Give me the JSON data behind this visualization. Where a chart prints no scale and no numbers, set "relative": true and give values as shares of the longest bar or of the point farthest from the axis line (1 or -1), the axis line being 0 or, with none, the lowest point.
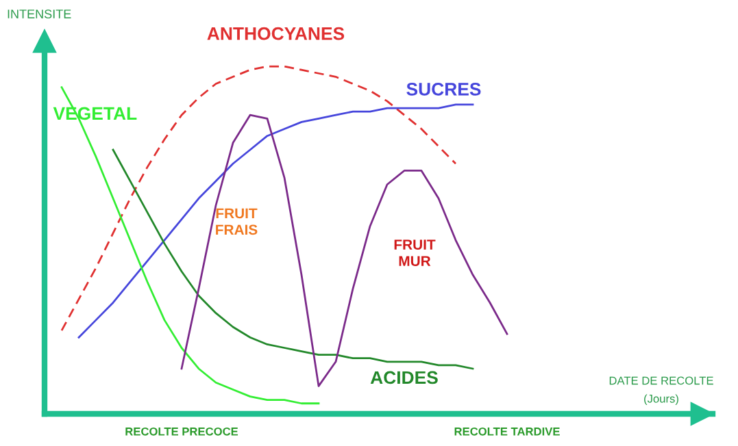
{
  "chart_data": {
    "type": "line",
    "relative": true,
    "ylabel": "INTENSITE",
    "xlabel": "DATE DE RECOLTE\n(Jours)",
    "categories": [
      null,
      null,
      null,
      null,
      null,
      null,
      null,
      "RECOLTE PRECOCE",
      null,
      null,
      null,
      null,
      null,
      null,
      null,
      null,
      null,
      null,
      null,
      null,
      null,
      null,
      null,
      null,
      null,
      null,
      "RECOLTE TARDIVE",
      null,
      null,
      null,
      null,
      null,
      null,
      null,
      null,
      null,
      null,
      null,
      null
    ],
    "annotations": [
      "FRUIT\nFRAIS",
      "FRUIT\nMUR"
    ],
    "series": [
      {
        "name": "ANTHOCYANES",
        "color": "#e03030",
        "line_style": "dashed",
        "values": [
          0.24,
          0.33,
          0.42,
          0.52,
          0.62,
          0.71,
          0.79,
          0.86,
          0.91,
          0.95,
          0.97,
          0.99,
          1.0,
          1.0,
          0.99,
          0.98,
          0.97,
          0.95,
          0.93,
          0.9,
          0.86,
          0.82,
          0.77,
          0.72,
          null,
          null,
          null,
          null,
          null,
          null,
          null,
          null,
          null,
          null,
          null,
          null,
          null,
          null,
          null
        ]
      },
      {
        "name": "SUCRES",
        "color": "#4646dc",
        "values": [
          null,
          0.22,
          0.27,
          0.32,
          0.38,
          0.44,
          0.5,
          0.56,
          0.62,
          0.67,
          0.72,
          0.76,
          0.8,
          0.82,
          0.84,
          0.85,
          0.86,
          0.87,
          0.87,
          0.88,
          0.88,
          0.88,
          0.88,
          0.89,
          0.89,
          null,
          null,
          null,
          null,
          null,
          null,
          null,
          null,
          null,
          null,
          null,
          null,
          null,
          null
        ]
      },
      {
        "name": "VEGETAL",
        "color": "#33ee33",
        "values": [
          0.94,
          0.85,
          0.74,
          0.62,
          0.5,
          0.38,
          0.27,
          0.19,
          0.13,
          0.09,
          0.07,
          0.05,
          0.04,
          0.04,
          0.03,
          0.03,
          null,
          null,
          null,
          null,
          null,
          null,
          null,
          null,
          null,
          null,
          null,
          null,
          null,
          null,
          null,
          null,
          null,
          null,
          null,
          null,
          null,
          null,
          null
        ]
      },
      {
        "name": "ACIDES",
        "color": "#22882a",
        "values": [
          null,
          null,
          null,
          0.76,
          0.67,
          0.58,
          0.49,
          0.41,
          0.34,
          0.29,
          0.25,
          0.22,
          0.2,
          0.19,
          0.18,
          0.17,
          0.17,
          0.16,
          0.16,
          0.15,
          0.15,
          0.15,
          0.14,
          0.14,
          0.13,
          null,
          null,
          null,
          null,
          null,
          null,
          null,
          null,
          null,
          null,
          null,
          null,
          null,
          null
        ]
      },
      {
        "color": "#7b2a8a",
        "values": [
          null,
          null,
          null,
          null,
          null,
          null,
          null,
          0.13,
          0.36,
          0.6,
          0.78,
          0.86,
          0.85,
          0.68,
          0.4,
          0.08,
          0.15,
          0.36,
          0.54,
          0.66,
          0.7,
          0.7,
          0.62,
          0.5,
          0.4,
          0.32,
          0.23,
          null,
          null,
          null,
          null,
          null,
          null,
          null,
          null,
          null,
          null,
          null,
          null
        ]
      }
    ]
  }
}
